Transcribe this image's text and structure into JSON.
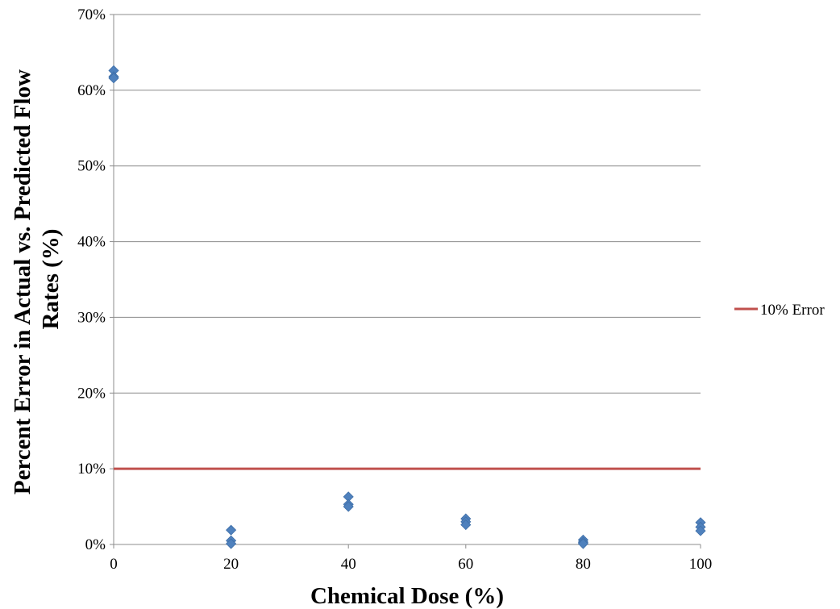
{
  "chart_data": {
    "type": "scatter",
    "title": "",
    "xlabel": "Chemical Dose (%)",
    "ylabel_lines": [
      "Percent Error in Actual vs. Predicted Flow",
      "Rates (%)"
    ],
    "xlim": [
      0,
      100
    ],
    "ylim": [
      0,
      70
    ],
    "x_ticks": [
      0,
      20,
      40,
      60,
      80,
      100
    ],
    "y_ticks": [
      0,
      10,
      20,
      30,
      40,
      50,
      60,
      70
    ],
    "y_tick_labels": [
      "0%",
      "10%",
      "20%",
      "30%",
      "40%",
      "50%",
      "60%",
      "70%"
    ],
    "grid": "horizontal",
    "legend_position": "right",
    "series": [
      {
        "marker": "diamond",
        "color": "#4F81BD",
        "x": [
          0,
          0,
          0,
          20,
          20,
          20,
          40,
          40,
          40,
          60,
          60,
          60,
          80,
          80,
          80,
          100,
          100,
          100
        ],
        "y": [
          62.6,
          61.8,
          61.6,
          1.9,
          0.5,
          0.1,
          6.3,
          5.3,
          5.0,
          3.4,
          3.0,
          2.6,
          0.6,
          0.3,
          0.1,
          2.9,
          2.3,
          1.8
        ]
      },
      {
        "name": "10% Error",
        "type": "line",
        "color": "#C0504D",
        "x": [
          0,
          100
        ],
        "y": [
          10,
          10
        ]
      }
    ]
  }
}
